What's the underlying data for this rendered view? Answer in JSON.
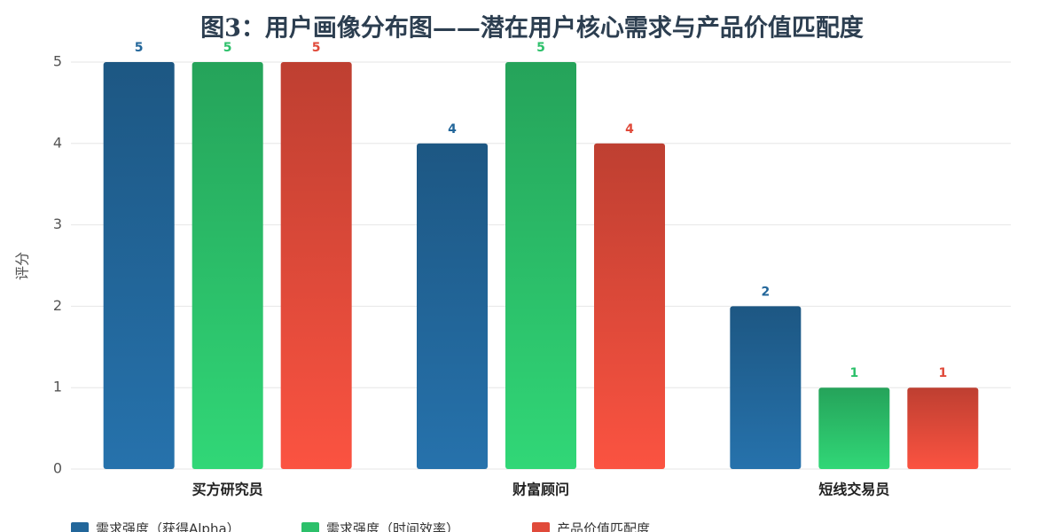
{
  "chart_data": {
    "type": "bar",
    "title": "图3：用户画像分布图——潜在用户核心需求与产品价值匹配度",
    "y_label": "评分",
    "categories": [
      "买方研究员",
      "财富顾问",
      "短线交易员"
    ],
    "series": [
      {
        "name": "需求强度（获得Alpha）",
        "color": "#22669a",
        "values": [
          5,
          4,
          2
        ]
      },
      {
        "name": "需求强度（时间效率）",
        "color": "#2cc06a",
        "values": [
          5,
          5,
          1
        ]
      },
      {
        "name": "产品价值匹配度",
        "color": "#e04a3a",
        "values": [
          5,
          4,
          1
        ]
      }
    ],
    "ylim": [
      0,
      5
    ],
    "yticks": [
      0,
      1,
      2,
      3,
      4,
      5
    ],
    "grid": true,
    "legend": "bottom"
  }
}
